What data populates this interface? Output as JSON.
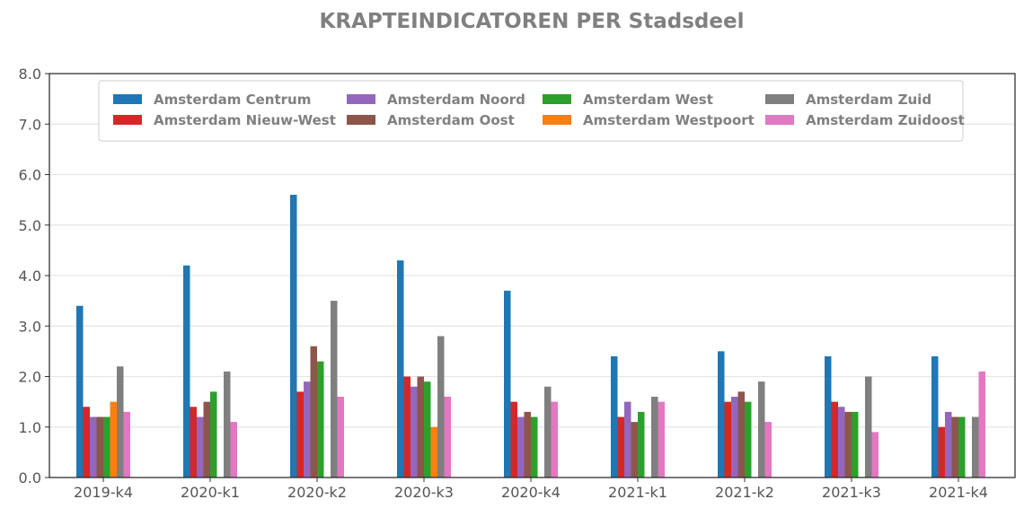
{
  "chart_data": {
    "type": "bar",
    "title": "KRAPTEINDICATOREN PER Stadsdeel",
    "xlabel": "",
    "ylabel": "",
    "ylim": [
      0,
      8
    ],
    "yticks": [
      "0.0",
      "1.0",
      "2.0",
      "3.0",
      "4.0",
      "5.0",
      "6.0",
      "7.0",
      "8.0"
    ],
    "grid": true,
    "legend_position": "top",
    "categories": [
      "2019-k4",
      "2020-k1",
      "2020-k2",
      "2020-k3",
      "2020-k4",
      "2021-k1",
      "2021-k2",
      "2021-k3",
      "2021-k4"
    ],
    "series": [
      {
        "name": "Amsterdam Centrum",
        "color": "#1f77b4",
        "values": [
          3.4,
          4.2,
          5.6,
          4.3,
          3.7,
          2.4,
          2.5,
          2.4,
          2.4
        ]
      },
      {
        "name": "Amsterdam Nieuw-West",
        "color": "#d62728",
        "values": [
          1.4,
          1.4,
          1.7,
          2.0,
          1.5,
          1.2,
          1.5,
          1.5,
          1.0
        ]
      },
      {
        "name": "Amsterdam Noord",
        "color": "#9467bd",
        "values": [
          1.2,
          1.2,
          1.9,
          1.8,
          1.2,
          1.5,
          1.6,
          1.4,
          1.3
        ]
      },
      {
        "name": "Amsterdam Oost",
        "color": "#8c564b",
        "values": [
          1.2,
          1.5,
          2.6,
          2.0,
          1.3,
          1.1,
          1.7,
          1.3,
          1.2
        ]
      },
      {
        "name": "Amsterdam West",
        "color": "#2ca02c",
        "values": [
          1.2,
          1.7,
          2.3,
          1.9,
          1.2,
          1.3,
          1.5,
          1.3,
          1.2
        ]
      },
      {
        "name": "Amsterdam Westpoort",
        "color": "#ff7f0e",
        "values": [
          1.5,
          null,
          null,
          1.0,
          null,
          null,
          null,
          null,
          null
        ]
      },
      {
        "name": "Amsterdam Zuid",
        "color": "#7f7f7f",
        "values": [
          2.2,
          2.1,
          3.5,
          2.8,
          1.8,
          1.6,
          1.9,
          2.0,
          1.2
        ]
      },
      {
        "name": "Amsterdam Zuidoost",
        "color": "#e377c2",
        "values": [
          1.3,
          1.1,
          1.6,
          1.6,
          1.5,
          1.5,
          1.1,
          0.9,
          2.1
        ]
      }
    ],
    "legend_order": [
      0,
      2,
      4,
      6,
      1,
      3,
      5,
      7
    ]
  }
}
